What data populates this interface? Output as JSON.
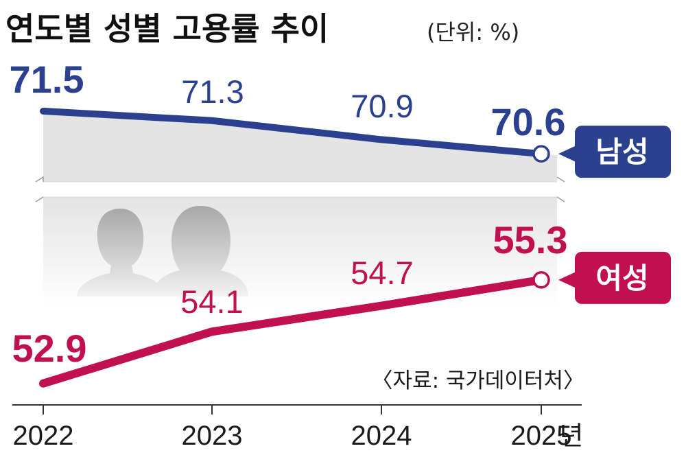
{
  "header": {
    "title": "연도별 성별 고용률 추이",
    "unit": "(단위: %)"
  },
  "source": "〈자료: 국가데이터처〉",
  "x_suffix": "년",
  "colors": {
    "male": "#2b4190",
    "female": "#c0104f",
    "band": "#e4e4e4",
    "axis": "#333333"
  },
  "chart_data": {
    "type": "line",
    "title": "연도별 성별 고용률 추이",
    "unit": "%",
    "categories": [
      "2022",
      "2023",
      "2024",
      "2025"
    ],
    "series": [
      {
        "name": "남성",
        "values": [
          71.5,
          71.3,
          70.9,
          70.6
        ],
        "labels": [
          "71.5",
          "71.3",
          "70.9",
          "70.6"
        ]
      },
      {
        "name": "여성",
        "values": [
          52.9,
          54.1,
          54.7,
          55.3
        ],
        "labels": [
          "52.9",
          "54.1",
          "54.7",
          "55.3"
        ]
      }
    ],
    "axis_break": true,
    "segments": [
      {
        "series": "남성",
        "ylim": [
          70.4,
          71.6
        ]
      },
      {
        "series": "여성",
        "ylim": [
          52.8,
          55.95
        ]
      }
    ]
  }
}
